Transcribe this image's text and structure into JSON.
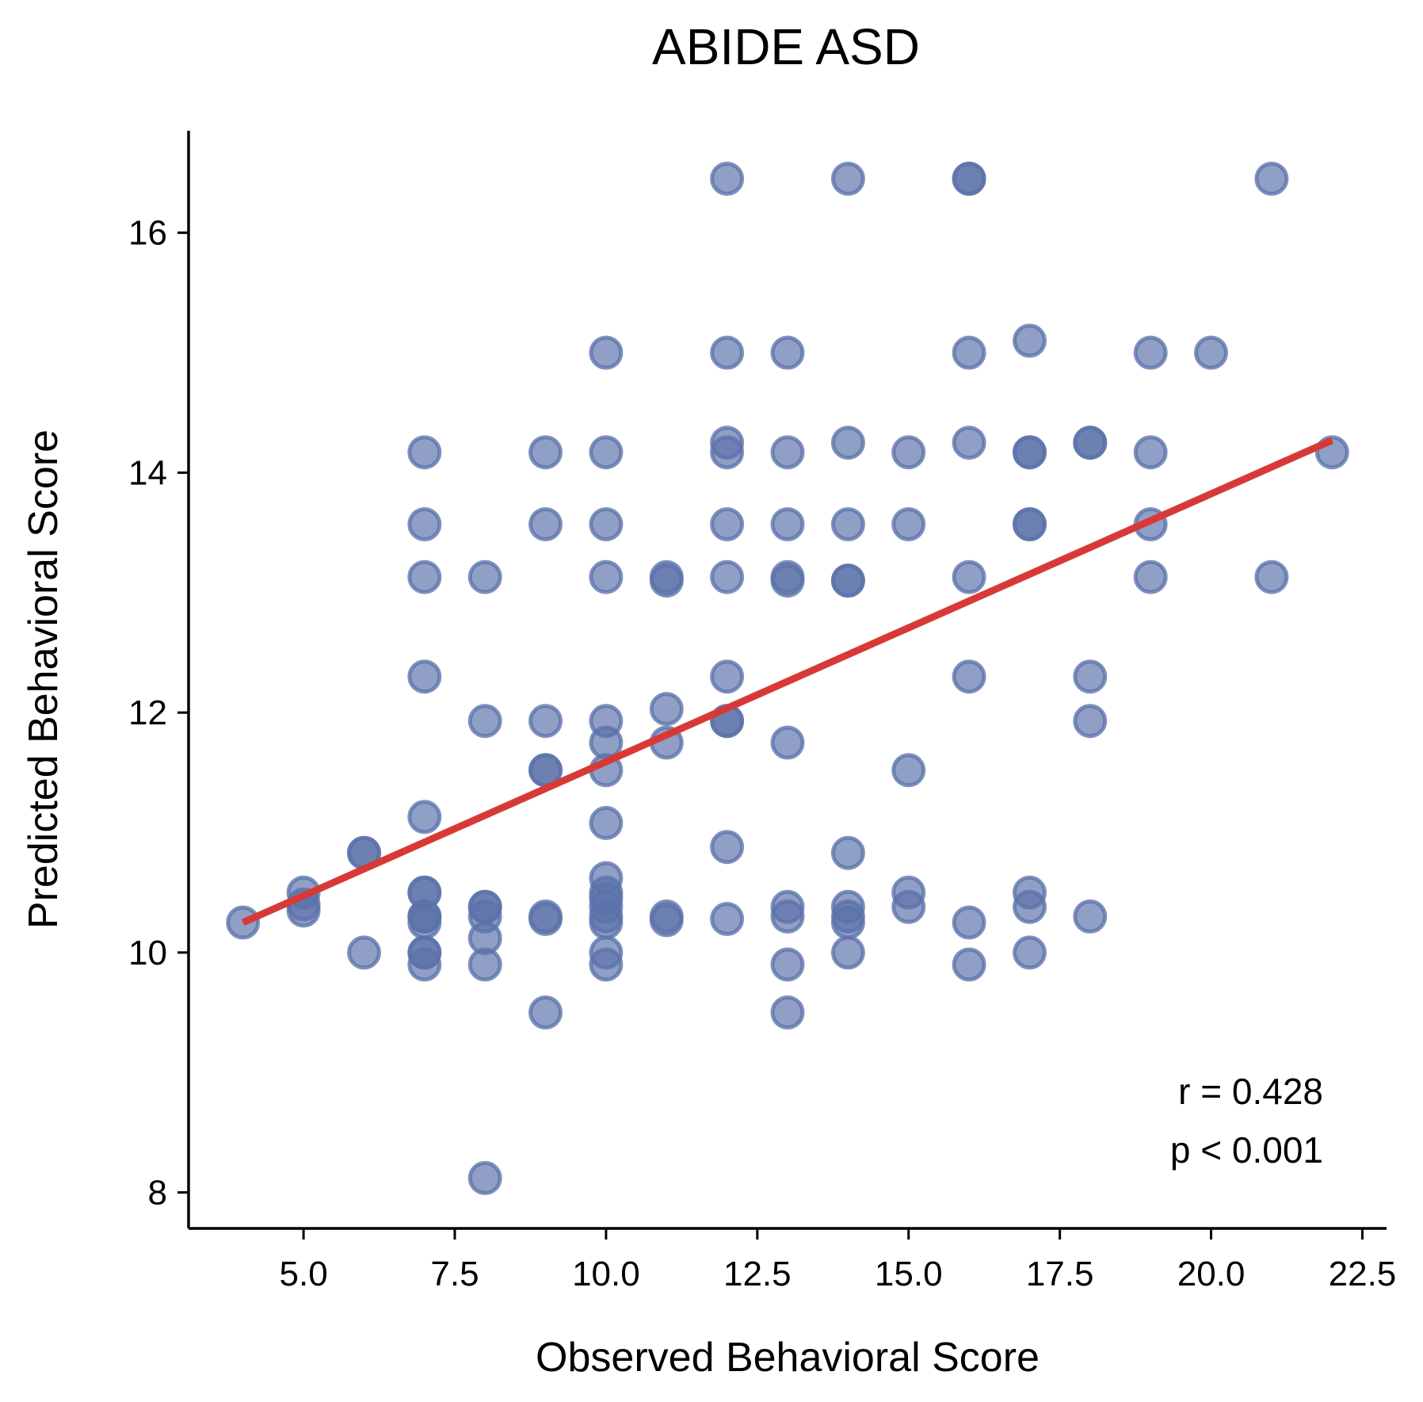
{
  "chart_data": {
    "type": "scatter",
    "title": "ABIDE ASD",
    "xlabel": "Observed Behavioral Score",
    "ylabel": "Predicted Behavioral Score",
    "xlim": [
      3.1,
      22.9
    ],
    "ylim": [
      7.7,
      16.85
    ],
    "xticks": [
      5.0,
      7.5,
      10.0,
      12.5,
      15.0,
      17.5,
      20.0,
      22.5
    ],
    "xtick_labels": [
      "5.0",
      "7.5",
      "10.0",
      "12.5",
      "15.0",
      "17.5",
      "20.0",
      "22.5"
    ],
    "yticks": [
      8,
      10,
      12,
      14,
      16
    ],
    "ytick_labels": [
      "8",
      "10",
      "12",
      "14",
      "16"
    ],
    "grid": false,
    "point_color": "#5b72aa",
    "line_color": "#d73a36",
    "points": [
      {
        "x": 4,
        "y": 10.25
      },
      {
        "x": 5,
        "y": 10.5
      },
      {
        "x": 5,
        "y": 10.4
      },
      {
        "x": 5,
        "y": 10.35
      },
      {
        "x": 6,
        "y": 10.83
      },
      {
        "x": 6,
        "y": 10.83
      },
      {
        "x": 6,
        "y": 10.0
      },
      {
        "x": 7,
        "y": 14.17
      },
      {
        "x": 7,
        "y": 13.57
      },
      {
        "x": 7,
        "y": 13.13
      },
      {
        "x": 7,
        "y": 12.3
      },
      {
        "x": 7,
        "y": 11.13
      },
      {
        "x": 7,
        "y": 10.5
      },
      {
        "x": 7,
        "y": 10.5
      },
      {
        "x": 7,
        "y": 10.3
      },
      {
        "x": 7,
        "y": 10.3
      },
      {
        "x": 7,
        "y": 10.25
      },
      {
        "x": 7,
        "y": 10.0
      },
      {
        "x": 7,
        "y": 10.0
      },
      {
        "x": 7,
        "y": 9.9
      },
      {
        "x": 8,
        "y": 13.13
      },
      {
        "x": 8,
        "y": 11.93
      },
      {
        "x": 8,
        "y": 10.38
      },
      {
        "x": 8,
        "y": 10.38
      },
      {
        "x": 8,
        "y": 10.3
      },
      {
        "x": 8,
        "y": 10.12
      },
      {
        "x": 8,
        "y": 9.9
      },
      {
        "x": 8,
        "y": 8.12
      },
      {
        "x": 9,
        "y": 14.17
      },
      {
        "x": 9,
        "y": 13.57
      },
      {
        "x": 9,
        "y": 11.93
      },
      {
        "x": 9,
        "y": 11.52
      },
      {
        "x": 9,
        "y": 11.52
      },
      {
        "x": 9,
        "y": 10.3
      },
      {
        "x": 9,
        "y": 10.28
      },
      {
        "x": 9,
        "y": 9.5
      },
      {
        "x": 10,
        "y": 15.0
      },
      {
        "x": 10,
        "y": 14.17
      },
      {
        "x": 10,
        "y": 13.57
      },
      {
        "x": 10,
        "y": 13.13
      },
      {
        "x": 10,
        "y": 11.93
      },
      {
        "x": 10,
        "y": 11.75
      },
      {
        "x": 10,
        "y": 11.52
      },
      {
        "x": 10,
        "y": 11.08
      },
      {
        "x": 10,
        "y": 10.62
      },
      {
        "x": 10,
        "y": 10.5
      },
      {
        "x": 10,
        "y": 10.45
      },
      {
        "x": 10,
        "y": 10.38
      },
      {
        "x": 10,
        "y": 10.3
      },
      {
        "x": 10,
        "y": 10.25
      },
      {
        "x": 10,
        "y": 10.0
      },
      {
        "x": 10,
        "y": 9.9
      },
      {
        "x": 11,
        "y": 13.13
      },
      {
        "x": 11,
        "y": 13.1
      },
      {
        "x": 11,
        "y": 12.03
      },
      {
        "x": 11,
        "y": 11.75
      },
      {
        "x": 11,
        "y": 10.3
      },
      {
        "x": 11,
        "y": 10.27
      },
      {
        "x": 12,
        "y": 16.45
      },
      {
        "x": 12,
        "y": 15.0
      },
      {
        "x": 12,
        "y": 14.25
      },
      {
        "x": 12,
        "y": 14.17
      },
      {
        "x": 12,
        "y": 13.57
      },
      {
        "x": 12,
        "y": 13.13
      },
      {
        "x": 12,
        "y": 12.3
      },
      {
        "x": 12,
        "y": 11.93
      },
      {
        "x": 12,
        "y": 11.93
      },
      {
        "x": 12,
        "y": 10.88
      },
      {
        "x": 12,
        "y": 10.28
      },
      {
        "x": 13,
        "y": 15.0
      },
      {
        "x": 13,
        "y": 14.17
      },
      {
        "x": 13,
        "y": 13.57
      },
      {
        "x": 13,
        "y": 13.13
      },
      {
        "x": 13,
        "y": 13.1
      },
      {
        "x": 13,
        "y": 11.75
      },
      {
        "x": 13,
        "y": 10.38
      },
      {
        "x": 13,
        "y": 10.3
      },
      {
        "x": 13,
        "y": 9.9
      },
      {
        "x": 13,
        "y": 9.5
      },
      {
        "x": 14,
        "y": 16.45
      },
      {
        "x": 14,
        "y": 14.25
      },
      {
        "x": 14,
        "y": 13.57
      },
      {
        "x": 14,
        "y": 13.1
      },
      {
        "x": 14,
        "y": 13.1
      },
      {
        "x": 14,
        "y": 10.83
      },
      {
        "x": 14,
        "y": 10.38
      },
      {
        "x": 14,
        "y": 10.3
      },
      {
        "x": 14,
        "y": 10.25
      },
      {
        "x": 14,
        "y": 10.0
      },
      {
        "x": 15,
        "y": 14.17
      },
      {
        "x": 15,
        "y": 13.57
      },
      {
        "x": 15,
        "y": 11.52
      },
      {
        "x": 15,
        "y": 10.5
      },
      {
        "x": 15,
        "y": 10.38
      },
      {
        "x": 16,
        "y": 16.45
      },
      {
        "x": 16,
        "y": 16.45
      },
      {
        "x": 16,
        "y": 15.0
      },
      {
        "x": 16,
        "y": 14.25
      },
      {
        "x": 16,
        "y": 13.13
      },
      {
        "x": 16,
        "y": 12.3
      },
      {
        "x": 16,
        "y": 10.25
      },
      {
        "x": 16,
        "y": 9.9
      },
      {
        "x": 17,
        "y": 15.1
      },
      {
        "x": 17,
        "y": 14.17
      },
      {
        "x": 17,
        "y": 14.17
      },
      {
        "x": 17,
        "y": 13.57
      },
      {
        "x": 17,
        "y": 13.57
      },
      {
        "x": 17,
        "y": 10.5
      },
      {
        "x": 17,
        "y": 10.38
      },
      {
        "x": 17,
        "y": 10.0
      },
      {
        "x": 18,
        "y": 14.25
      },
      {
        "x": 18,
        "y": 14.25
      },
      {
        "x": 18,
        "y": 12.3
      },
      {
        "x": 18,
        "y": 11.93
      },
      {
        "x": 18,
        "y": 10.3
      },
      {
        "x": 19,
        "y": 15.0
      },
      {
        "x": 19,
        "y": 14.17
      },
      {
        "x": 19,
        "y": 13.57
      },
      {
        "x": 19,
        "y": 13.13
      },
      {
        "x": 20,
        "y": 15.0
      },
      {
        "x": 21,
        "y": 16.45
      },
      {
        "x": 21,
        "y": 13.13
      },
      {
        "x": 22,
        "y": 14.17
      }
    ],
    "fit_line": {
      "x": [
        4,
        22
      ],
      "y": [
        10.25,
        14.27
      ]
    },
    "annotations": [
      "r = 0.428",
      "p < 0.001"
    ]
  }
}
